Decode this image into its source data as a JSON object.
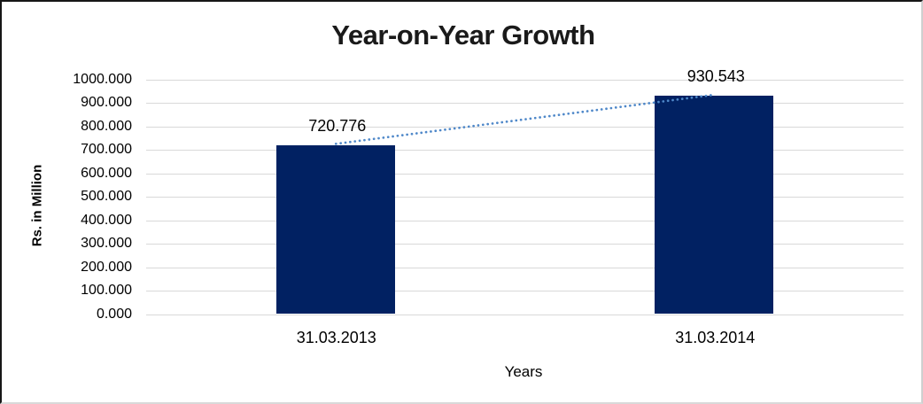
{
  "chart_data": {
    "type": "bar",
    "title": "Year-on-Year Growth",
    "xlabel": "Years",
    "ylabel": "Rs. in Million",
    "categories": [
      "31.03.2013",
      "31.03.2014"
    ],
    "values": [
      720.776,
      930.543
    ],
    "data_labels": [
      "720.776",
      "930.543"
    ],
    "ylim": [
      0,
      1000
    ],
    "ytick_step": 100,
    "ytick_labels": [
      "0.000",
      "100.000",
      "200.000",
      "300.000",
      "400.000",
      "500.000",
      "600.000",
      "700.000",
      "800.000",
      "900.000",
      "1000.000"
    ],
    "grid": true,
    "legend": "none",
    "trendline": {
      "type": "linear",
      "style": "dotted"
    },
    "colors": {
      "bar": "#012162",
      "trendline": "#4f88c9",
      "gridline": "#d9d9d9",
      "text": "#000000",
      "title": "#1a1a1a",
      "background": "#ffffff"
    }
  }
}
